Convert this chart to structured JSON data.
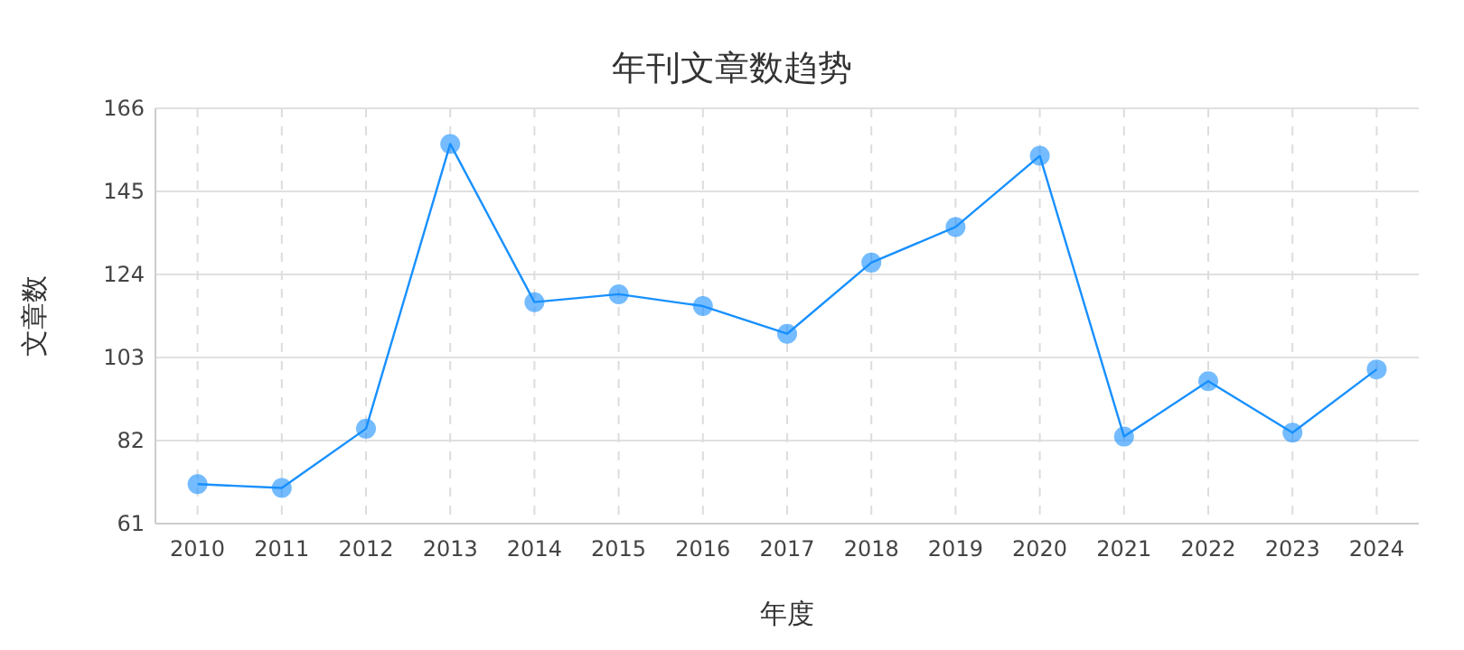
{
  "chart_data": {
    "type": "line",
    "title": "年刊文章数趋势",
    "xlabel": "年度",
    "ylabel": "文章数",
    "categories": [
      "2010",
      "2011",
      "2012",
      "2013",
      "2014",
      "2015",
      "2016",
      "2017",
      "2018",
      "2019",
      "2020",
      "2021",
      "2022",
      "2023",
      "2024"
    ],
    "series": [
      {
        "color": "#1890ff",
        "values": [
          71,
          70,
          85,
          157,
          117,
          119,
          116,
          109,
          127,
          136,
          154,
          83,
          97,
          84,
          100
        ]
      }
    ],
    "ylim": [
      61,
      166
    ],
    "yticks": [
      61,
      82,
      103,
      124,
      145,
      166
    ],
    "grid": true,
    "marker": "circle",
    "line_style": "solid"
  }
}
